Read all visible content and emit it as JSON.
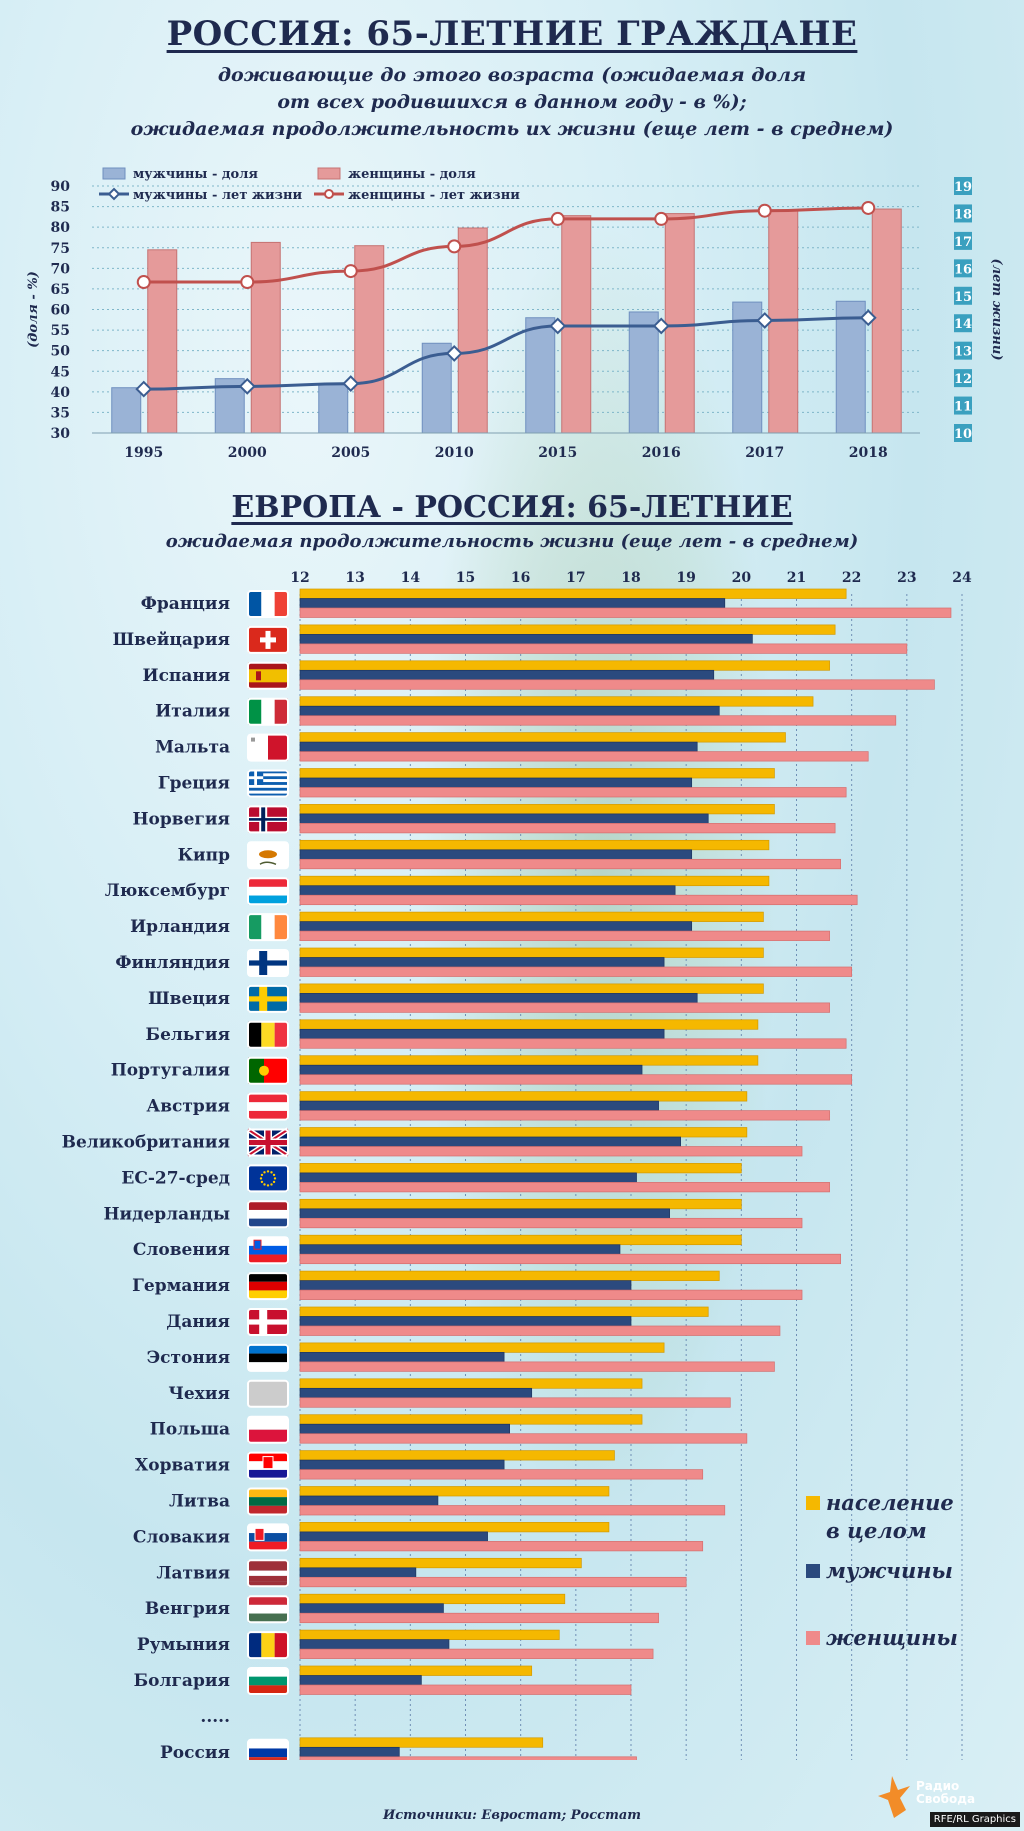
{
  "top": {
    "title": "РОССИЯ: 65-ЛЕТНИЕ ГРАЖДАНЕ",
    "subtitle_lines": [
      "доживающие до этого возраста (ожидаемая доля",
      "от всех родившихся в данном году - в %);",
      "ожидаемая продолжительность их жизни (еще лет - в среднем)"
    ]
  },
  "bottom": {
    "title": "ЕВРОПА - РОССИЯ: 65-ЛЕТНИЕ",
    "subtitle": "ожидаемая продолжительность жизни (еще лет - в среднем)"
  },
  "source": "Источники: Евростат; Росстат",
  "brand": {
    "line1": "Радио",
    "line2": "Свобода"
  },
  "credit": "RFE/RL Graphics",
  "colors": {
    "men_bar": "#9ab3d6",
    "women_bar": "#e59a9a",
    "men_line": "#3b5d91",
    "women_line": "#c0504d",
    "total_bar": "#f5b800",
    "men_dark": "#2b4a7e",
    "women_pink": "#ef8a8a",
    "navy": "#1f2a4f",
    "right_axis_bg": "#3aa0bf"
  },
  "chart_data": [
    {
      "type": "bar",
      "categories": [
        "1995",
        "2000",
        "2005",
        "2010",
        "2015",
        "2016",
        "2017",
        "2018"
      ],
      "ylabel": "(доля - %)",
      "ylabel_right": "(лет жизни)",
      "ylim": [
        30,
        90
      ],
      "yticks": [
        30,
        35,
        40,
        45,
        50,
        55,
        60,
        65,
        70,
        75,
        80,
        85,
        90
      ],
      "ylim_right": [
        10,
        19
      ],
      "yticks_right": [
        10,
        11,
        12,
        13,
        14,
        15,
        16,
        17,
        18,
        19
      ],
      "legend_position": "top-left",
      "series": [
        {
          "name": "мужчины - доля",
          "kind": "bar",
          "axis": "left",
          "values": [
            41,
            43.2,
            41.7,
            51.8,
            58,
            59.4,
            61.8,
            62
          ]
        },
        {
          "name": "женщины - доля",
          "kind": "bar",
          "axis": "left",
          "values": [
            74.5,
            76.3,
            75.5,
            79.8,
            82.8,
            83.3,
            84.2,
            84.4
          ]
        },
        {
          "name": "мужчины - лет жизни",
          "kind": "line",
          "axis": "right",
          "values": [
            11.6,
            11.7,
            11.8,
            12.9,
            13.9,
            13.9,
            14.1,
            14.2
          ]
        },
        {
          "name": "женщины - лет жизни",
          "kind": "line",
          "axis": "right",
          "values": [
            15.5,
            15.5,
            15.9,
            16.8,
            17.8,
            17.8,
            18.1,
            18.2
          ]
        }
      ]
    },
    {
      "type": "bar",
      "orientation": "horizontal",
      "xlim": [
        12,
        24
      ],
      "xticks": [
        12,
        13,
        14,
        15,
        16,
        17,
        18,
        19,
        20,
        21,
        22,
        23,
        24
      ],
      "grid": true,
      "legend_position": "bottom-right",
      "ellipsis_label": ".....",
      "legend": [
        {
          "key": "total",
          "lines": [
            "население",
            "в целом"
          ]
        },
        {
          "key": "men",
          "lines": [
            "мужчины"
          ]
        },
        {
          "key": "women",
          "lines": [
            "женщины"
          ]
        }
      ],
      "countries": [
        {
          "name": "Франция",
          "flag": "france",
          "total": 21.9,
          "men": 19.7,
          "women": 23.8
        },
        {
          "name": "Швейцария",
          "flag": "switzerland",
          "total": 21.7,
          "men": 20.2,
          "women": 23.0
        },
        {
          "name": "Испания",
          "flag": "spain",
          "total": 21.6,
          "men": 19.5,
          "women": 23.5
        },
        {
          "name": "Италия",
          "flag": "italy",
          "total": 21.3,
          "men": 19.6,
          "women": 22.8
        },
        {
          "name": "Мальта",
          "flag": "malta",
          "total": 20.8,
          "men": 19.2,
          "women": 22.3
        },
        {
          "name": "Греция",
          "flag": "greece",
          "total": 20.6,
          "men": 19.1,
          "women": 21.9
        },
        {
          "name": "Норвегия",
          "flag": "norway",
          "total": 20.6,
          "men": 19.4,
          "women": 21.7
        },
        {
          "name": "Кипр",
          "flag": "cyprus",
          "total": 20.5,
          "men": 19.1,
          "women": 21.8
        },
        {
          "name": "Люксембург",
          "flag": "luxembourg",
          "total": 20.5,
          "men": 18.8,
          "women": 22.1
        },
        {
          "name": "Ирландия",
          "flag": "ireland",
          "total": 20.4,
          "men": 19.1,
          "women": 21.6
        },
        {
          "name": "Финляндия",
          "flag": "finland",
          "total": 20.4,
          "men": 18.6,
          "women": 22.0
        },
        {
          "name": "Швеция",
          "flag": "sweden",
          "total": 20.4,
          "men": 19.2,
          "women": 21.6
        },
        {
          "name": "Бельгия",
          "flag": "belgium",
          "total": 20.3,
          "men": 18.6,
          "women": 21.9
        },
        {
          "name": "Португалия",
          "flag": "portugal",
          "total": 20.3,
          "men": 18.2,
          "women": 22.0
        },
        {
          "name": "Австрия",
          "flag": "austria",
          "total": 20.1,
          "men": 18.5,
          "women": 21.6
        },
        {
          "name": "Великобритания",
          "flag": "uk",
          "total": 20.1,
          "men": 18.9,
          "women": 21.1
        },
        {
          "name": "ЕС-27-сред",
          "flag": "eu",
          "total": 20.0,
          "men": 18.1,
          "women": 21.6
        },
        {
          "name": "Нидерланды",
          "flag": "netherlands",
          "total": 20.0,
          "men": 18.7,
          "women": 21.1
        },
        {
          "name": "Словения",
          "flag": "slovenia",
          "total": 20.0,
          "men": 17.8,
          "women": 21.8
        },
        {
          "name": "Германия",
          "flag": "germany",
          "total": 19.6,
          "men": 18.0,
          "women": 21.1
        },
        {
          "name": "Дания",
          "flag": "denmark",
          "total": 19.4,
          "men": 18.0,
          "women": 20.7
        },
        {
          "name": "Эстония",
          "flag": "estonia",
          "total": 18.6,
          "men": 15.7,
          "women": 20.6
        },
        {
          "name": "Чехия",
          "flag": "czech",
          "total": 18.2,
          "men": 16.2,
          "women": 19.8
        },
        {
          "name": "Польша",
          "flag": "poland",
          "total": 18.2,
          "men": 15.8,
          "women": 20.1
        },
        {
          "name": "Хорватия",
          "flag": "croatia",
          "total": 17.7,
          "men": 15.7,
          "women": 19.3
        },
        {
          "name": "Литва",
          "flag": "lithuania",
          "total": 17.6,
          "men": 14.5,
          "women": 19.7
        },
        {
          "name": "Словакия",
          "flag": "slovakia",
          "total": 17.6,
          "men": 15.4,
          "women": 19.3
        },
        {
          "name": "Латвия",
          "flag": "latvia",
          "total": 17.1,
          "men": 14.1,
          "women": 19.0
        },
        {
          "name": "Венгрия",
          "flag": "hungary",
          "total": 16.8,
          "men": 14.6,
          "women": 18.5
        },
        {
          "name": "Румыния",
          "flag": "romania",
          "total": 16.7,
          "men": 14.7,
          "women": 18.4
        },
        {
          "name": "Болгария",
          "flag": "bulgaria",
          "total": 16.2,
          "men": 14.2,
          "women": 18.0
        }
      ],
      "russia": {
        "name": "Россия",
        "flag": "russia",
        "total": 16.4,
        "men": 13.8,
        "women": 18.1
      }
    }
  ]
}
